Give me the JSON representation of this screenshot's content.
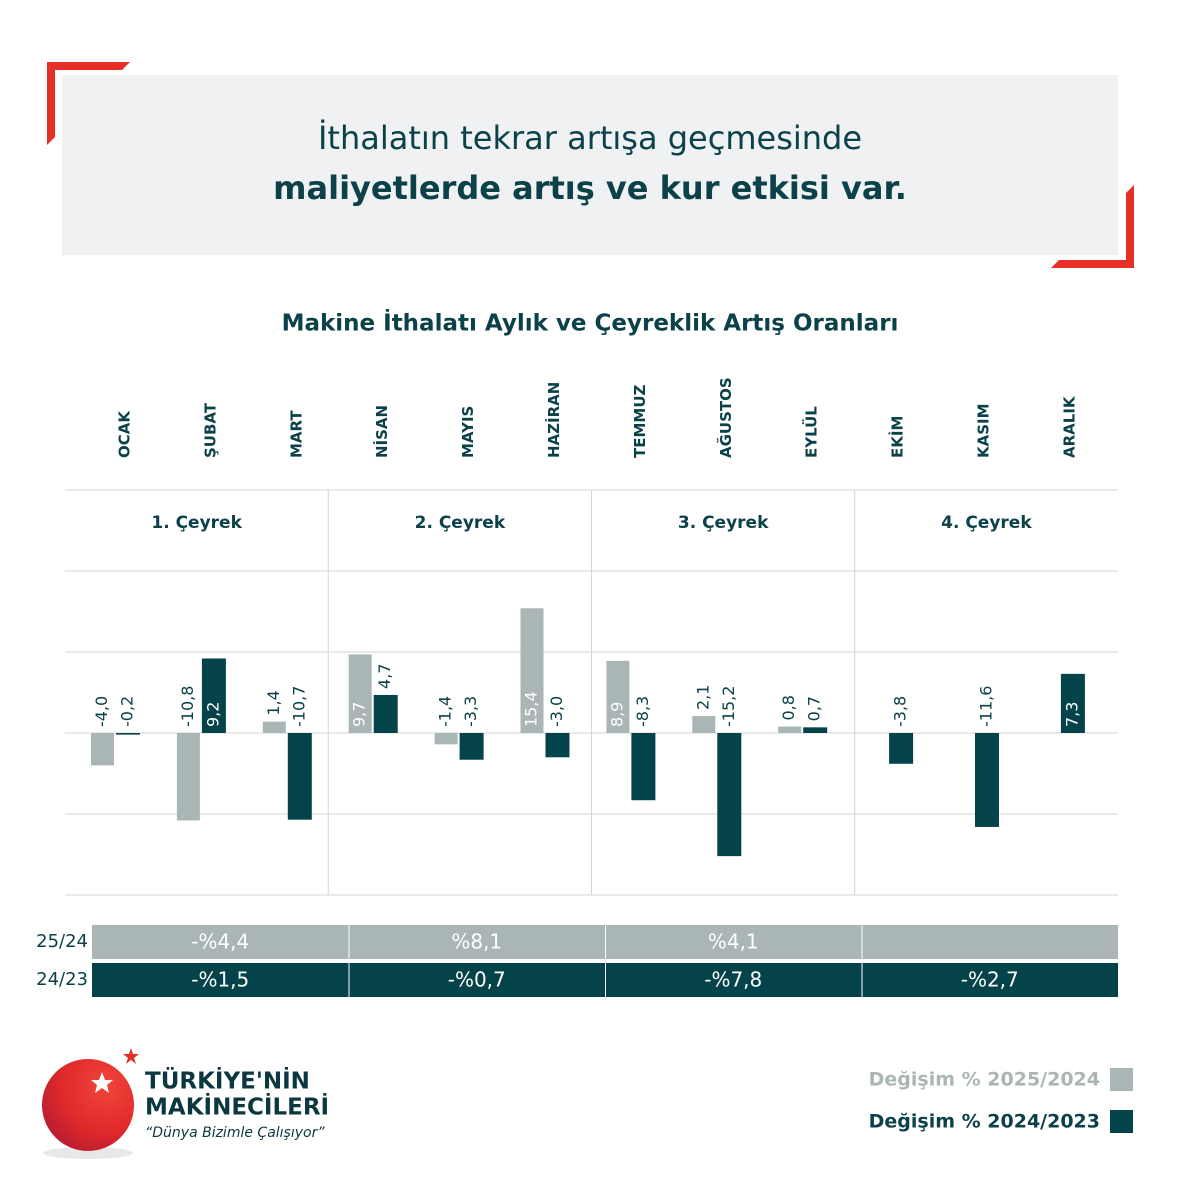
{
  "header": {
    "line1": "İthalatın tekrar artışa geçmesinde",
    "line2": "maliyetlerde artış ve kur etkisi var."
  },
  "chart_data": {
    "type": "bar",
    "title": "Makine İthalatı Aylık ve Çeyreklik Artış Oranları",
    "categories": [
      "OCAK",
      "ŞUBAT",
      "MART",
      "NİSAN",
      "MAYIS",
      "HAZİRAN",
      "TEMMUZ",
      "AĞUSTOS",
      "EYLÜL",
      "EKİM",
      "KASIM",
      "ARALIK"
    ],
    "quarters": [
      "1. Çeyrek",
      "2. Çeyrek",
      "3. Çeyrek",
      "4. Çeyrek"
    ],
    "series": [
      {
        "name": "Değişim % 2025/2024",
        "color": "#aab6b5",
        "values": [
          -4.0,
          -10.8,
          1.4,
          9.7,
          -1.4,
          15.4,
          8.9,
          2.1,
          0.8,
          null,
          null,
          null
        ],
        "value_labels": [
          "-4,0",
          "-10,8",
          "1,4",
          "9,7",
          "-1,4",
          "15,4",
          "8,9",
          "2,1",
          "0,8",
          null,
          null,
          null
        ]
      },
      {
        "name": "Değişim % 2024/2023",
        "color": "#04434a",
        "values": [
          -0.2,
          9.2,
          -10.7,
          4.7,
          -3.3,
          -3.0,
          -8.3,
          -15.2,
          0.7,
          -3.8,
          -11.6,
          7.3
        ],
        "value_labels": [
          "-0,2",
          "9,2",
          "-10,7",
          "4,7",
          "-3,3",
          "-3,0",
          "-8,3",
          "-15,2",
          "0,7",
          "-3,8",
          "-11,6",
          "7,3"
        ]
      }
    ],
    "ylim": [
      -20,
      20
    ],
    "yticks": [
      -20,
      -10,
      0,
      10,
      20
    ],
    "grid": true,
    "quarter_table": [
      {
        "label": "25/24",
        "color": "#aab6b5",
        "values": [
          "-%4,4",
          "%8,1",
          "%4,1",
          null
        ]
      },
      {
        "label": "24/23",
        "color": "#04434a",
        "values": [
          "-%1,5",
          "-%0,7",
          "-%7,8",
          "-%2,7"
        ]
      }
    ]
  },
  "logo": {
    "line1": "TÜRKİYE'NİN",
    "line2": "MAKİNECİLERİ",
    "slogan": "“Dünya Bizimle Çalışıyor”"
  }
}
